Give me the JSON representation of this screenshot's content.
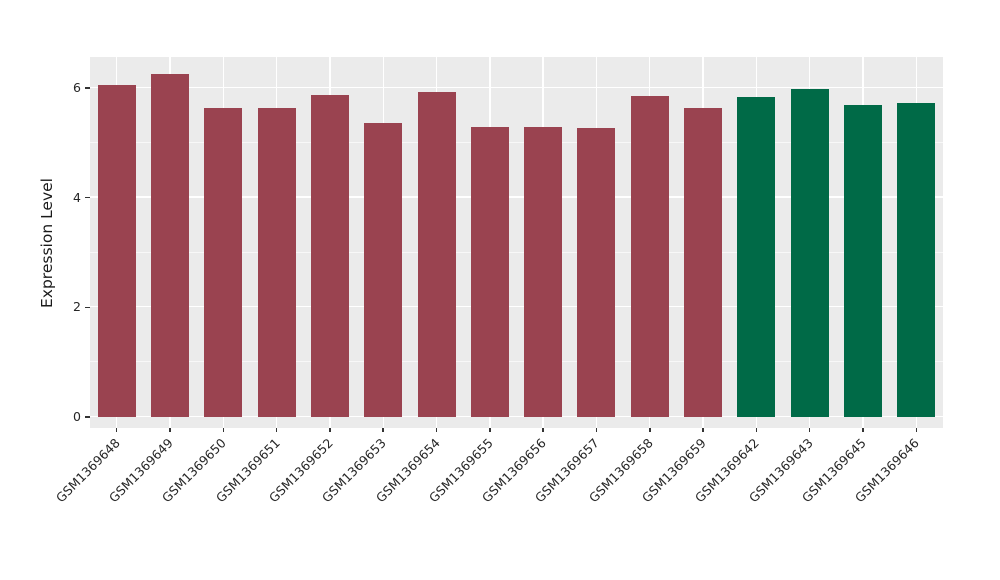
{
  "chart_data": {
    "type": "bar",
    "title": "",
    "xlabel": "",
    "ylabel": "Expression Level",
    "ylim": [
      0,
      6.6
    ],
    "yticks": [
      0,
      2,
      4,
      6
    ],
    "grid": "on",
    "legend_position": "none",
    "panel_background": "#EBEBEB",
    "gridline_color": "#FFFFFF",
    "text_color": "#262626",
    "group_colors": {
      "maroon": "#9A4350",
      "green": "#006A47"
    },
    "categories": [
      "GSM1369648",
      "GSM1369649",
      "GSM1369650",
      "GSM1369651",
      "GSM1369652",
      "GSM1369653",
      "GSM1369654",
      "GSM1369655",
      "GSM1369656",
      "GSM1369657",
      "GSM1369658",
      "GSM1369659",
      "GSM1369642",
      "GSM1369643",
      "GSM1369645",
      "GSM1369646"
    ],
    "values": [
      6.06,
      6.26,
      5.64,
      5.64,
      5.88,
      5.36,
      5.93,
      5.28,
      5.28,
      5.27,
      5.86,
      5.64,
      5.84,
      5.99,
      5.69,
      5.73
    ],
    "bar_colors": [
      "#9A4350",
      "#9A4350",
      "#9A4350",
      "#9A4350",
      "#9A4350",
      "#9A4350",
      "#9A4350",
      "#9A4350",
      "#9A4350",
      "#9A4350",
      "#9A4350",
      "#9A4350",
      "#006A47",
      "#006A47",
      "#006A47",
      "#006A47"
    ]
  }
}
